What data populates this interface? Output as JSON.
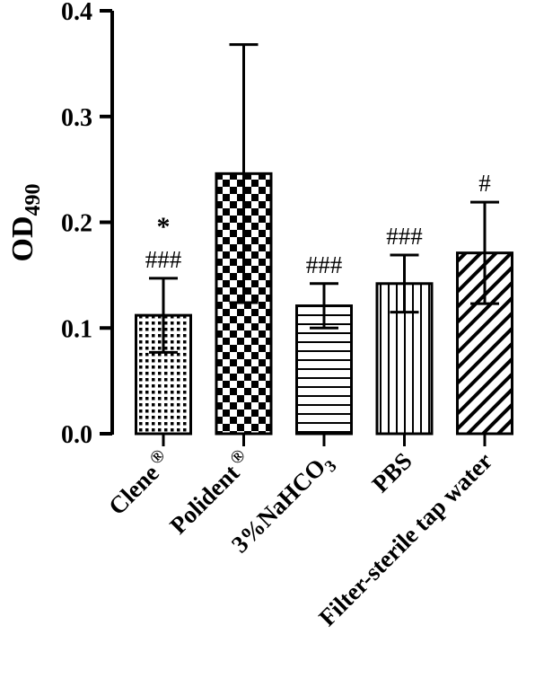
{
  "chart_data": {
    "type": "bar",
    "ylabel_main": "OD",
    "ylabel_sub": "490",
    "ylim": [
      0,
      0.4
    ],
    "yticks": [
      "0.0",
      "0.1",
      "0.2",
      "0.3",
      "0.4"
    ],
    "grid": false,
    "bars": [
      {
        "label": "Clene",
        "label_mark": "®",
        "value": 0.112,
        "err": 0.035,
        "pattern": "pat-dots",
        "annotations": [
          "*",
          "###"
        ]
      },
      {
        "label": "Polident",
        "label_mark": "®",
        "value": 0.246,
        "err": 0.122,
        "pattern": "pat-checker",
        "annotations": []
      },
      {
        "label": "3%NaHCO",
        "label_sub": "3",
        "value": 0.121,
        "err": 0.021,
        "pattern": "pat-horiz",
        "annotations": [
          "###"
        ]
      },
      {
        "label": "PBS",
        "value": 0.142,
        "err": 0.027,
        "pattern": "pat-vert",
        "annotations": [
          "###"
        ]
      },
      {
        "label": "Filter-sterile tap water",
        "value": 0.171,
        "err": 0.048,
        "pattern": "pat-diag",
        "annotations": [
          "#"
        ]
      }
    ]
  }
}
